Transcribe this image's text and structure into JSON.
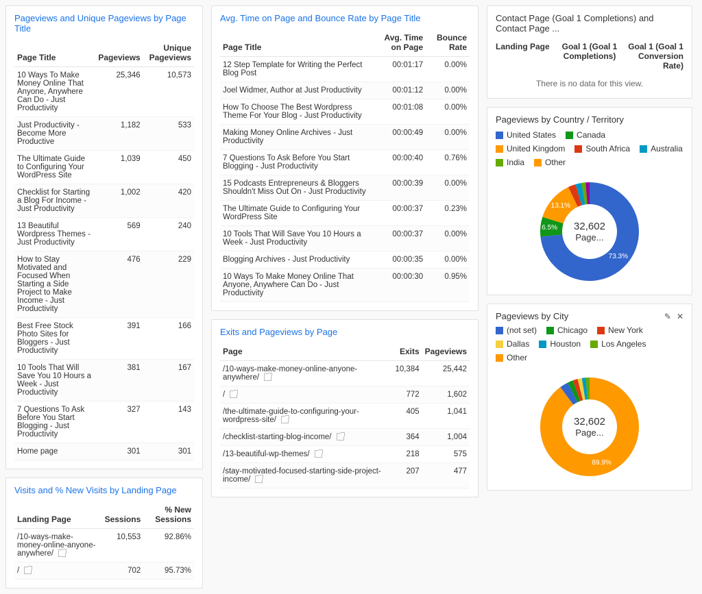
{
  "colors": {
    "link": "#1a73e8",
    "border": "#e0e0e0"
  },
  "col1": {
    "panelA": {
      "title": "Pageviews and Unique Pageviews by Page Title",
      "headers": [
        "Page Title",
        "Pageviews",
        "Unique Pageviews"
      ],
      "rows": [
        [
          "10 Ways To Make Money Online That Anyone, Anywhere Can Do - Just Productivity",
          "25,346",
          "10,573"
        ],
        [
          "Just Productivity - Become More Productive",
          "1,182",
          "533"
        ],
        [
          "The Ultimate Guide to Configuring Your WordPress Site",
          "1,039",
          "450"
        ],
        [
          "Checklist for Starting a Blog For Income - Just Productivity",
          "1,002",
          "420"
        ],
        [
          "13 Beautiful Wordpress Themes - Just Productivity",
          "569",
          "240"
        ],
        [
          "How to Stay Motivated and Focused When Starting a Side Project to Make Income - Just Productivity",
          "476",
          "229"
        ],
        [
          "Best Free Stock Photo Sites for Bloggers - Just Productivity",
          "391",
          "166"
        ],
        [
          "10 Tools That Will Save You 10 Hours a Week - Just Productivity",
          "381",
          "167"
        ],
        [
          "7 Questions To Ask Before You Start Blogging - Just Productivity",
          "327",
          "143"
        ],
        [
          "Home page",
          "301",
          "301"
        ]
      ]
    },
    "panelB": {
      "title": "Visits and % New Visits by Landing Page",
      "headers": [
        "Landing Page",
        "Sessions",
        "% New Sessions"
      ],
      "rows": [
        [
          "/10-ways-make-money-online-anyone-anywhere/",
          "10,553",
          "92.86%"
        ],
        [
          "/",
          "702",
          "95.73%"
        ]
      ]
    }
  },
  "col2": {
    "panelA": {
      "title": "Avg. Time on Page and Bounce Rate by Page Title",
      "headers": [
        "Page Title",
        "Avg. Time on Page",
        "Bounce Rate"
      ],
      "rows": [
        [
          "12 Step Template for Writing the Perfect Blog Post",
          "00:01:17",
          "0.00%"
        ],
        [
          "Joel Widmer, Author at Just Productivity",
          "00:01:12",
          "0.00%"
        ],
        [
          "How To Choose The Best Wordpress Theme For Your Blog - Just Productivity",
          "00:01:08",
          "0.00%"
        ],
        [
          "Making Money Online Archives - Just Productivity",
          "00:00:49",
          "0.00%"
        ],
        [
          "7 Questions To Ask Before You Start Blogging - Just Productivity",
          "00:00:40",
          "0.76%"
        ],
        [
          "15 Podcasts Entrepreneurs & Bloggers Shouldn't Miss Out On - Just Productivity",
          "00:00:39",
          "0.00%"
        ],
        [
          "The Ultimate Guide to Configuring Your WordPress Site",
          "00:00:37",
          "0.23%"
        ],
        [
          "10 Tools That Will Save You 10 Hours a Week - Just Productivity",
          "00:00:37",
          "0.00%"
        ],
        [
          "Blogging Archives - Just Productivity",
          "00:00:35",
          "0.00%"
        ],
        [
          "10 Ways To Make Money Online That Anyone, Anywhere Can Do - Just Productivity",
          "00:00:30",
          "0.95%"
        ]
      ]
    },
    "panelB": {
      "title": "Exits and Pageviews by Page",
      "headers": [
        "Page",
        "Exits",
        "Pageviews"
      ],
      "rows": [
        [
          "/10-ways-make-money-online-anyone-anywhere/",
          "10,384",
          "25,442"
        ],
        [
          "/",
          "772",
          "1,602"
        ],
        [
          "/the-ultimate-guide-to-configuring-your-wordpress-site/",
          "405",
          "1,041"
        ],
        [
          "/checklist-starting-blog-income/",
          "364",
          "1,004"
        ],
        [
          "/13-beautiful-wp-themes/",
          "218",
          "575"
        ],
        [
          "/stay-motivated-focused-starting-side-project-income/",
          "207",
          "477"
        ]
      ]
    }
  },
  "col3": {
    "panelA": {
      "title": "Contact Page (Goal 1 Completions) and Contact Page ...",
      "headers": [
        "Landing Page",
        "Goal 1 (Goal 1 Completions)",
        "Goal 1 (Goal 1 Conversion Rate)"
      ],
      "noData": "There is no data for this view."
    },
    "panelB": {
      "title": "Pageviews by Country / Territory",
      "legend": [
        {
          "label": "United States",
          "color": "#3366cc"
        },
        {
          "label": "Canada",
          "color": "#109618"
        },
        {
          "label": "United Kingdom",
          "color": "#ff9900"
        },
        {
          "label": "South Africa",
          "color": "#dc3912"
        },
        {
          "label": "Australia",
          "color": "#0099c6"
        },
        {
          "label": "India",
          "color": "#66aa00"
        },
        {
          "label": "Other",
          "color": "#ff9900"
        }
      ],
      "slices": [
        {
          "label": "73.3%",
          "value": 73.3,
          "color": "#3366cc"
        },
        {
          "label": "6.5%",
          "value": 6.5,
          "color": "#109618"
        },
        {
          "label": "13.1%",
          "value": 13.1,
          "color": "#ff9900"
        },
        {
          "label": "",
          "value": 2.5,
          "color": "#dc3912"
        },
        {
          "label": "",
          "value": 2.0,
          "color": "#0099c6"
        },
        {
          "label": "",
          "value": 1.3,
          "color": "#66aa00"
        },
        {
          "label": "",
          "value": 1.3,
          "color": "#990099"
        }
      ],
      "center": {
        "num": "32,602",
        "txt": "Page..."
      }
    },
    "panelC": {
      "title": "Pageviews by City",
      "legend": [
        {
          "label": "(not set)",
          "color": "#3366cc"
        },
        {
          "label": "Chicago",
          "color": "#109618"
        },
        {
          "label": "New York",
          "color": "#dc3912"
        },
        {
          "label": "Dallas",
          "color": "#f4d03f"
        },
        {
          "label": "Houston",
          "color": "#0099c6"
        },
        {
          "label": "Los Angeles",
          "color": "#66aa00"
        },
        {
          "label": "Other",
          "color": "#ff9900"
        }
      ],
      "slices": [
        {
          "label": "89.9%",
          "value": 89.9,
          "color": "#ff9900"
        },
        {
          "label": "",
          "value": 2.8,
          "color": "#3366cc"
        },
        {
          "label": "",
          "value": 1.8,
          "color": "#109618"
        },
        {
          "label": "",
          "value": 1.6,
          "color": "#dc3912"
        },
        {
          "label": "",
          "value": 1.4,
          "color": "#f4d03f"
        },
        {
          "label": "",
          "value": 1.3,
          "color": "#0099c6"
        },
        {
          "label": "",
          "value": 1.2,
          "color": "#66aa00"
        }
      ],
      "center": {
        "num": "32,602",
        "txt": "Page..."
      }
    }
  }
}
